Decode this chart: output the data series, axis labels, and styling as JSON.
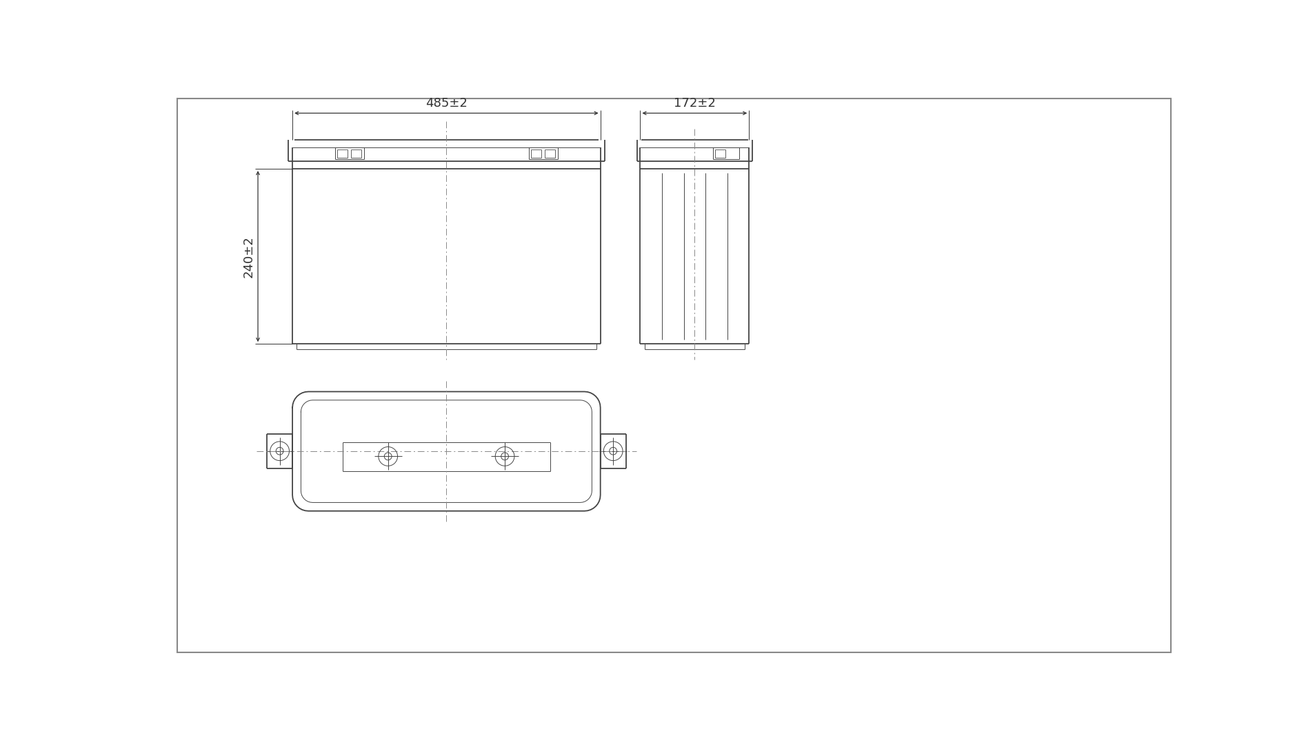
{
  "bg_color": "#ffffff",
  "frame_color": "#cccccc",
  "line_color": "#444444",
  "dim_color": "#333333",
  "centerline_color": "#888888",
  "dim_width": "485±2",
  "dim_depth": "172±2",
  "dim_height": "240±2",
  "lw_main": 1.3,
  "lw_thin": 0.7,
  "lw_dim": 0.8,
  "lw_dash": 0.7,
  "font_size_dim": 13
}
